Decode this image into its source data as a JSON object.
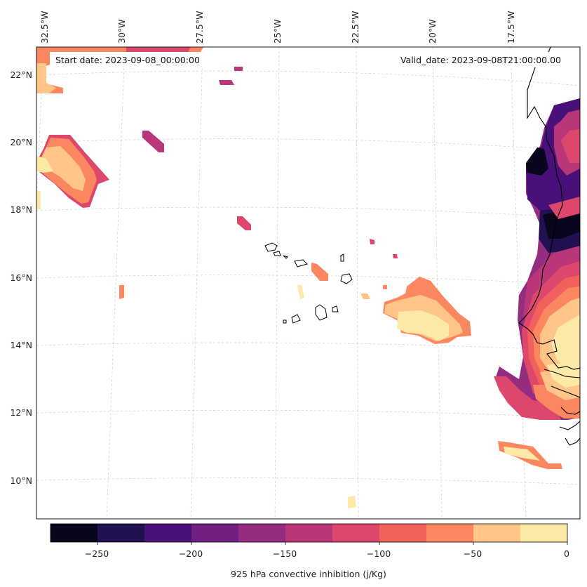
{
  "map": {
    "start_date": "Start date: 2023-09-08_00:00:00",
    "valid_date": "Valid_date: 2023-09-08T21:00:00.00",
    "lon_labels": [
      "32.5°W",
      "30°W",
      "27.5°W",
      "25°W",
      "22.5°W",
      "20°W",
      "17.5°W"
    ],
    "lat_labels": [
      "22°N",
      "20°N",
      "18°N",
      "16°N",
      "14°N",
      "12°N",
      "10°N"
    ]
  },
  "colorbar": {
    "label": "925 hPa convective inhibition (j/Kg)",
    "ticks": [
      "−250",
      "−200",
      "−150",
      "−100",
      "−50",
      "0"
    ],
    "colors": [
      "#07061c",
      "#221150",
      "#4a1079",
      "#711f81",
      "#942c80",
      "#b93779",
      "#dc476b",
      "#f2605c",
      "#fb8761",
      "#fec488",
      "#fde9a6"
    ],
    "levels": [
      -275,
      -250,
      -225,
      -200,
      -175,
      -150,
      -125,
      -100,
      -75,
      -50,
      -25,
      0
    ]
  }
}
